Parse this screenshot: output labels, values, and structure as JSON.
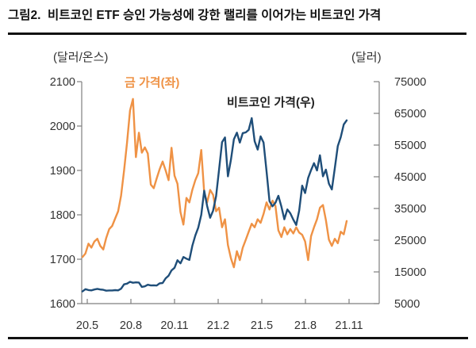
{
  "title": "그림2.  비트코인 ETF 승인 가능성에 강한 랠리를 이어가는 비트코인 가격",
  "chart_data": {
    "type": "line",
    "left_axis": {
      "unit_label": "(달러/온스)",
      "min": 1600,
      "max": 2100,
      "ticks": [
        2100,
        2000,
        1900,
        1800,
        1700,
        1600
      ]
    },
    "right_axis": {
      "unit_label": "(달러)",
      "min": 5000,
      "max": 75000,
      "ticks": [
        75000,
        65000,
        55000,
        45000,
        35000,
        25000,
        15000,
        5000
      ]
    },
    "x_axis": {
      "ticks": [
        "20.5",
        "20.8",
        "20.11",
        "21.2",
        "21.5",
        "21.8",
        "21.11"
      ]
    },
    "grid": false,
    "series": [
      {
        "name": "금 가격(좌)",
        "axis": "left",
        "color": "#EF9245",
        "values": [
          1705,
          1713,
          1735,
          1726,
          1740,
          1746,
          1730,
          1722,
          1748,
          1768,
          1775,
          1792,
          1808,
          1843,
          1900,
          1962,
          2035,
          2061,
          1930,
          1985,
          1940,
          1952,
          1938,
          1868,
          1860,
          1882,
          1903,
          1920,
          1900,
          1878,
          1951,
          1888,
          1870,
          1806,
          1778,
          1838,
          1828,
          1856,
          1878,
          1894,
          1946,
          1850,
          1828,
          1856,
          1845,
          1808,
          1816,
          1772,
          1790,
          1732,
          1702,
          1682,
          1718,
          1698,
          1726,
          1744,
          1762,
          1780,
          1772,
          1790,
          1782,
          1802,
          1828,
          1812,
          1832,
          1820,
          1765,
          1750,
          1772,
          1756,
          1768,
          1758,
          1772,
          1760,
          1755,
          1740,
          1698,
          1752,
          1772,
          1790,
          1816,
          1822,
          1788,
          1744,
          1730,
          1746,
          1736,
          1762,
          1756,
          1786
        ]
      },
      {
        "name": "비트코인 가격(우)",
        "axis": "right",
        "color": "#1F4E79",
        "values": [
          8850,
          9550,
          9280,
          9180,
          9450,
          9650,
          9440,
          9350,
          9080,
          9140,
          9150,
          9250,
          9180,
          9700,
          11080,
          11300,
          11880,
          11580,
          11700,
          11640,
          10280,
          10450,
          10940,
          10720,
          10780,
          10690,
          11400,
          11500,
          12980,
          13790,
          15480,
          16300,
          18680,
          17710,
          19690,
          19170,
          18780,
          23200,
          26480,
          28950,
          33000,
          40600,
          35780,
          32080,
          34290,
          38900,
          47200,
          55900,
          57400,
          45140,
          50380,
          56800,
          58900,
          55780,
          58770,
          58990,
          59790,
          63500,
          56200,
          53580,
          57750,
          55800,
          46700,
          37290,
          35680,
          36790,
          39000,
          35600,
          31590,
          34700,
          33500,
          31500,
          29790,
          34290,
          42200,
          39870,
          44600,
          47100,
          49290,
          47010,
          51770,
          45160,
          47250,
          42830,
          41010,
          47680,
          54690,
          57480,
          61500,
          62800
        ]
      }
    ]
  },
  "colors": {
    "gold_line": "#EF9245",
    "bitcoin_line": "#1F4E79",
    "axis_line": "#7F7F7F",
    "tick_label": "#333333",
    "title_text": "#111111"
  }
}
